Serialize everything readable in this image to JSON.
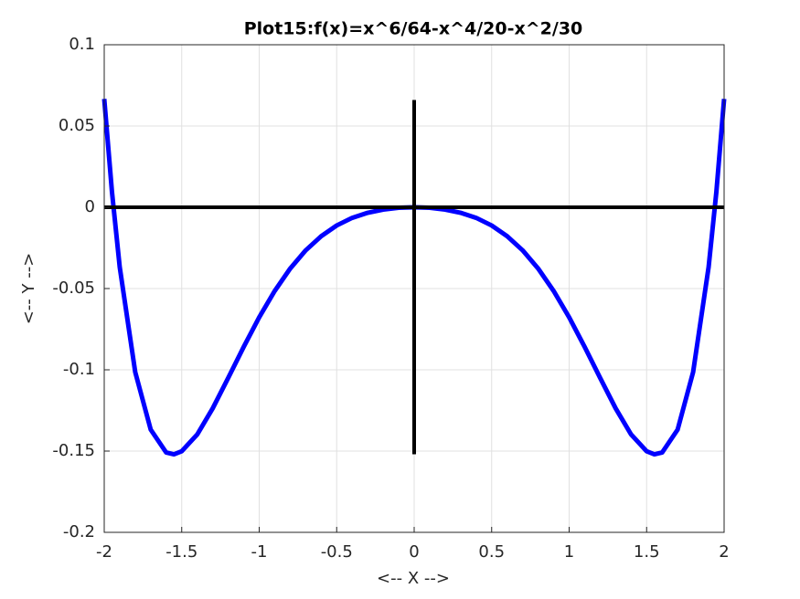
{
  "chart_data": {
    "type": "line",
    "title": "Plot15:f(x)=x^6/64-x^4/20-x^2/30",
    "xlabel": "<-- X -->",
    "ylabel": "<-- Y -->",
    "xlim": [
      -2,
      2
    ],
    "ylim": [
      -0.2,
      0.1
    ],
    "xticks": [
      -2,
      -1.5,
      -1,
      -0.5,
      0,
      0.5,
      1,
      1.5,
      2
    ],
    "yticks": [
      -0.2,
      -0.15,
      -0.1,
      -0.05,
      0,
      0.05,
      0.1
    ],
    "grid": true,
    "series": [
      {
        "color": "#0000ff",
        "x": [
          -2,
          -1.95,
          -1.9,
          -1.8,
          -1.7,
          -1.6,
          -1.55,
          -1.5,
          -1.4,
          -1.3,
          -1.2,
          -1.1,
          -1,
          -0.9,
          -0.8,
          -0.7,
          -0.6,
          -0.5,
          -0.4,
          -0.3,
          -0.2,
          -0.1,
          0,
          0.1,
          0.2,
          0.3,
          0.4,
          0.5,
          0.6,
          0.7,
          0.8,
          0.9,
          1,
          1.1,
          1.2,
          1.3,
          1.4,
          1.5,
          1.55,
          1.6,
          1.7,
          1.8,
          1.9,
          1.95,
          2
        ],
        "values": [
          0.0667,
          0.0094,
          -0.0368,
          -0.1014,
          -0.1368,
          -0.1509,
          -0.152,
          -0.1501,
          -0.1398,
          -0.1237,
          -0.105,
          -0.0859,
          -0.0677,
          -0.0515,
          -0.0377,
          -0.0265,
          -0.0178,
          -0.0112,
          -0.0065,
          -0.0034,
          -0.0014,
          -0.0003,
          0,
          -0.0003,
          -0.0014,
          -0.0034,
          -0.0065,
          -0.0112,
          -0.0178,
          -0.0265,
          -0.0377,
          -0.0515,
          -0.0677,
          -0.0859,
          -0.105,
          -0.1237,
          -0.1398,
          -0.1501,
          -0.152,
          -0.1509,
          -0.1368,
          -0.1014,
          -0.0368,
          0.0094,
          0.0667
        ]
      },
      {
        "color": "#000000",
        "x": [
          -2,
          2
        ],
        "values": [
          0,
          0
        ]
      },
      {
        "color": "#000000",
        "x": [
          0,
          0
        ],
        "values": [
          -0.152,
          0.066
        ]
      }
    ]
  }
}
